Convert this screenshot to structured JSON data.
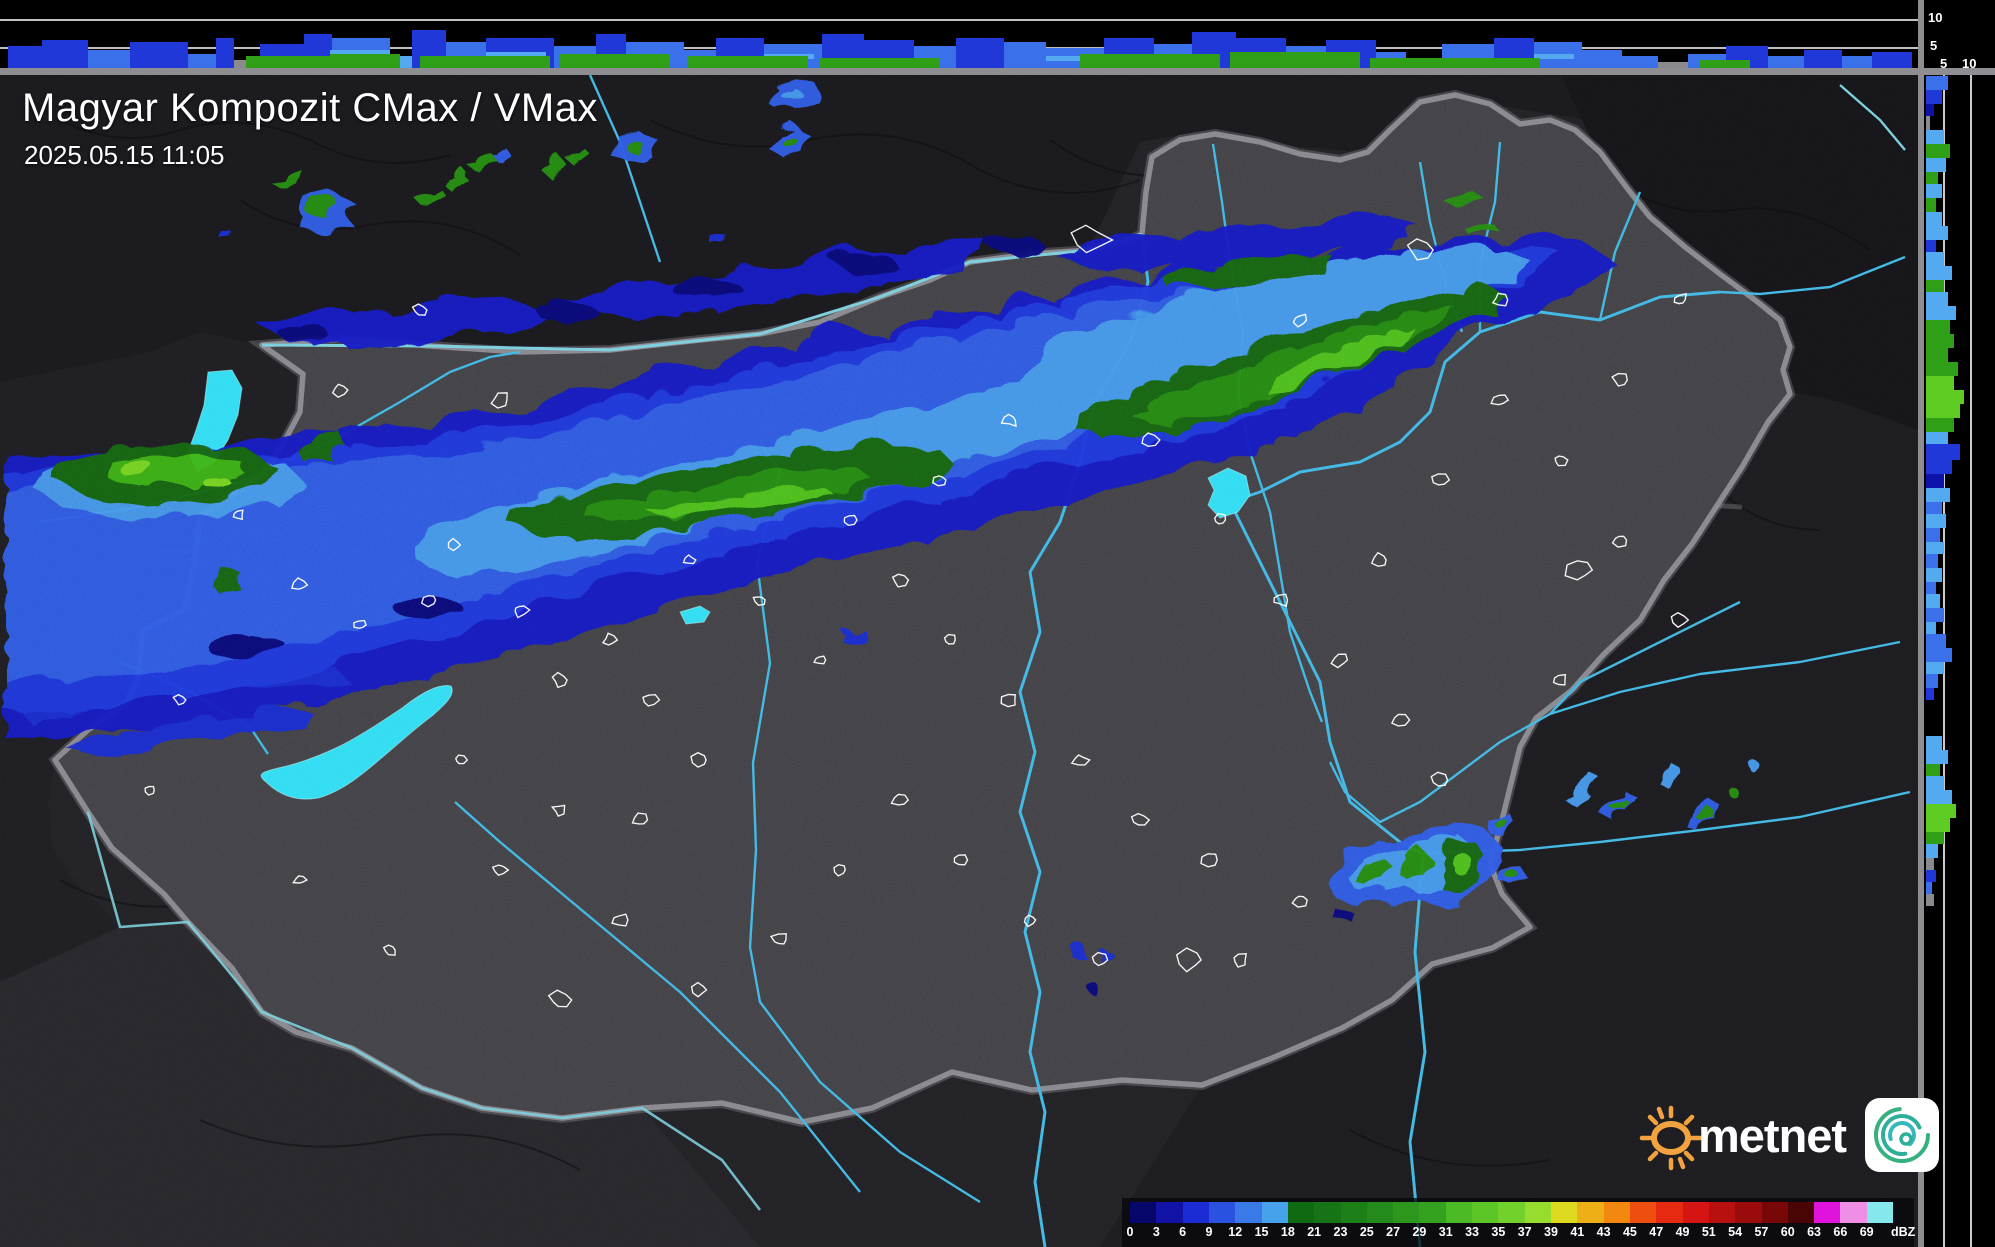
{
  "header": {
    "title": "Magyar Kompozit CMax / VMax",
    "timestamp": "2025.05.15 11:05"
  },
  "legend": {
    "unit": "dBZ",
    "ticks": [
      "0",
      "3",
      "6",
      "9",
      "12",
      "15",
      "18",
      "21",
      "23",
      "25",
      "27",
      "29",
      "31",
      "33",
      "35",
      "37",
      "39",
      "41",
      "43",
      "45",
      "47",
      "49",
      "51",
      "54",
      "57",
      "60",
      "63",
      "66",
      "69"
    ],
    "colors": [
      "#07076b",
      "#1113a6",
      "#1c2cd4",
      "#2b51e0",
      "#3a79e8",
      "#47a2ec",
      "#0f6a12",
      "#167416",
      "#1d7f18",
      "#248a1b",
      "#2c961d",
      "#35a21f",
      "#4bba24",
      "#5cc627",
      "#72d12b",
      "#97dd30",
      "#ddda20",
      "#eeae16",
      "#f2880f",
      "#ee4f10",
      "#e62a12",
      "#d51414",
      "#b80f0f",
      "#9a0b0b",
      "#780707",
      "#4a0404",
      "#e013dd",
      "#ee8ee4",
      "#85e8ec"
    ]
  },
  "scales": {
    "top_height_labels": [
      "10",
      "5"
    ],
    "right_height_labels": [
      "5",
      "10"
    ]
  },
  "logo": {
    "text": "metnet"
  },
  "map_colors": {
    "water": "#3fe2f4",
    "river": "#4fc3e8",
    "country_border": "#9a9aa0",
    "county_border": "#87878d",
    "terrain_inside": "#515157",
    "terrain_outside": "#2a2a2f",
    "echo_navy": "#0d12a8",
    "echo_royal": "#2038d8",
    "echo_blue": "#3a70ea",
    "echo_sky": "#54aaf0",
    "echo_green_dark": "#1d7c12",
    "echo_green": "#2f9f17",
    "echo_green_bright": "#5fcc24",
    "echo_green_max": "#8fdf2c"
  },
  "top_profile": {
    "bars": [
      [
        8,
        34,
        22,
        "r"
      ],
      [
        42,
        46,
        28,
        "r"
      ],
      [
        88,
        42,
        18,
        "b"
      ],
      [
        130,
        58,
        26,
        "r"
      ],
      [
        188,
        28,
        14,
        "b"
      ],
      [
        216,
        18,
        30,
        "r"
      ],
      [
        234,
        26,
        8,
        "x"
      ],
      [
        260,
        44,
        24,
        "r"
      ],
      [
        304,
        28,
        34,
        "r"
      ],
      [
        332,
        58,
        30,
        "b"
      ],
      [
        390,
        22,
        12,
        "s"
      ],
      [
        412,
        34,
        38,
        "r"
      ],
      [
        446,
        40,
        26,
        "b"
      ],
      [
        486,
        68,
        30,
        "r"
      ],
      [
        554,
        42,
        22,
        "b"
      ],
      [
        596,
        30,
        34,
        "r"
      ],
      [
        626,
        58,
        26,
        "b"
      ],
      [
        684,
        32,
        18,
        "b"
      ],
      [
        716,
        48,
        30,
        "r"
      ],
      [
        764,
        58,
        24,
        "b"
      ],
      [
        822,
        42,
        34,
        "r"
      ],
      [
        864,
        50,
        28,
        "r"
      ],
      [
        914,
        42,
        22,
        "b"
      ],
      [
        956,
        48,
        30,
        "r"
      ],
      [
        1004,
        42,
        26,
        "b"
      ],
      [
        1046,
        58,
        20,
        "b"
      ],
      [
        1104,
        50,
        30,
        "r"
      ],
      [
        1154,
        38,
        24,
        "b"
      ],
      [
        1192,
        44,
        36,
        "r"
      ],
      [
        1236,
        50,
        30,
        "r"
      ],
      [
        1286,
        40,
        22,
        "b"
      ],
      [
        1326,
        50,
        28,
        "r"
      ],
      [
        1376,
        30,
        16,
        "b"
      ],
      [
        1406,
        36,
        8,
        "x"
      ],
      [
        1442,
        52,
        24,
        "b"
      ],
      [
        1494,
        40,
        30,
        "r"
      ],
      [
        1534,
        48,
        26,
        "b"
      ],
      [
        1582,
        40,
        18,
        "b"
      ],
      [
        1622,
        36,
        12,
        "b"
      ],
      [
        1658,
        30,
        6,
        "x"
      ],
      [
        1688,
        38,
        14,
        "b"
      ],
      [
        1726,
        42,
        22,
        "r"
      ],
      [
        1768,
        36,
        12,
        "b"
      ],
      [
        1804,
        38,
        18,
        "r"
      ],
      [
        1842,
        30,
        12,
        "b"
      ],
      [
        1872,
        40,
        16,
        "r"
      ]
    ],
    "greens": [
      [
        246,
        96,
        12
      ],
      [
        330,
        70,
        14
      ],
      [
        420,
        130,
        12
      ],
      [
        560,
        110,
        14
      ],
      [
        688,
        120,
        12
      ],
      [
        820,
        120,
        10
      ],
      [
        1080,
        140,
        14
      ],
      [
        1230,
        130,
        16
      ],
      [
        1370,
        80,
        10
      ],
      [
        1450,
        90,
        10
      ],
      [
        1700,
        50,
        8
      ]
    ],
    "caps": [
      [
        330,
        60,
        18
      ],
      [
        486,
        60,
        16
      ],
      [
        764,
        50,
        14
      ],
      [
        1046,
        50,
        12
      ],
      [
        1286,
        40,
        12
      ],
      [
        1534,
        40,
        14
      ]
    ]
  },
  "right_profile": {
    "bars": [
      [
        76,
        14,
        22,
        "b"
      ],
      [
        90,
        14,
        16,
        "r"
      ],
      [
        104,
        12,
        8,
        "n"
      ],
      [
        116,
        14,
        4,
        "x"
      ],
      [
        130,
        14,
        18,
        "s"
      ],
      [
        144,
        14,
        24,
        "g"
      ],
      [
        158,
        14,
        20,
        "s"
      ],
      [
        172,
        12,
        12,
        "g"
      ],
      [
        184,
        14,
        16,
        "s"
      ],
      [
        198,
        14,
        10,
        "g"
      ],
      [
        212,
        14,
        16,
        "s"
      ],
      [
        226,
        14,
        22,
        "s"
      ],
      [
        240,
        12,
        10,
        "r"
      ],
      [
        252,
        14,
        18,
        "s"
      ],
      [
        266,
        14,
        26,
        "s"
      ],
      [
        280,
        12,
        18,
        "g"
      ],
      [
        292,
        14,
        22,
        "s"
      ],
      [
        306,
        14,
        30,
        "s"
      ],
      [
        320,
        14,
        24,
        "g"
      ],
      [
        334,
        14,
        28,
        "g"
      ],
      [
        348,
        14,
        22,
        "g"
      ],
      [
        362,
        14,
        32,
        "g"
      ],
      [
        376,
        14,
        28,
        "G"
      ],
      [
        390,
        14,
        38,
        "G"
      ],
      [
        404,
        14,
        34,
        "G"
      ],
      [
        418,
        14,
        28,
        "g"
      ],
      [
        432,
        12,
        22,
        "s"
      ],
      [
        444,
        16,
        34,
        "r"
      ],
      [
        460,
        14,
        26,
        "r"
      ],
      [
        474,
        14,
        18,
        "n"
      ],
      [
        488,
        14,
        24,
        "s"
      ],
      [
        502,
        12,
        16,
        "b"
      ],
      [
        514,
        14,
        20,
        "s"
      ],
      [
        528,
        14,
        14,
        "b"
      ],
      [
        542,
        12,
        18,
        "s"
      ],
      [
        554,
        14,
        12,
        "b"
      ],
      [
        568,
        14,
        16,
        "s"
      ],
      [
        582,
        12,
        10,
        "b"
      ],
      [
        594,
        14,
        14,
        "s"
      ],
      [
        608,
        14,
        18,
        "b"
      ],
      [
        622,
        12,
        10,
        "s"
      ],
      [
        634,
        14,
        20,
        "b"
      ],
      [
        648,
        14,
        26,
        "b"
      ],
      [
        662,
        12,
        18,
        "s"
      ],
      [
        674,
        14,
        12,
        "b"
      ],
      [
        688,
        12,
        8,
        "r"
      ],
      [
        736,
        14,
        16,
        "s"
      ],
      [
        750,
        14,
        22,
        "s"
      ],
      [
        764,
        12,
        14,
        "g"
      ],
      [
        776,
        14,
        18,
        "s"
      ],
      [
        790,
        14,
        26,
        "s"
      ],
      [
        804,
        14,
        30,
        "G"
      ],
      [
        818,
        14,
        24,
        "G"
      ],
      [
        832,
        12,
        18,
        "g"
      ],
      [
        844,
        14,
        12,
        "s"
      ],
      [
        858,
        12,
        8,
        "x"
      ],
      [
        870,
        12,
        10,
        "r"
      ],
      [
        882,
        12,
        6,
        "b"
      ],
      [
        894,
        12,
        8,
        "x"
      ]
    ]
  }
}
